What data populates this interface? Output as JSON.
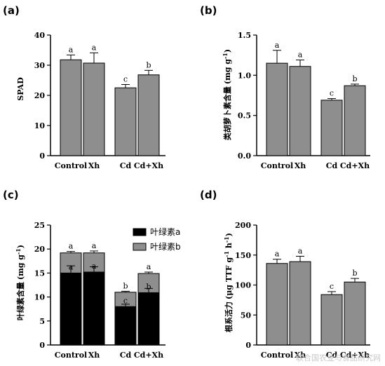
{
  "watermark": "联合国农业与食品研究网",
  "colors": {
    "bar": "#8e8e8e",
    "chl_a": "#000000",
    "chl_b": "#8e8e8e",
    "axis": "#000000"
  },
  "chart_data": [
    {
      "panel": "(a)",
      "type": "bar",
      "categories": [
        "Control",
        "Xh",
        "Cd",
        "Cd+Xh"
      ],
      "values": [
        31.8,
        30.7,
        22.5,
        26.8
      ],
      "errors": [
        1.6,
        3.4,
        1.1,
        1.5
      ],
      "significance": [
        "a",
        "a",
        "c",
        "b"
      ],
      "xlabel": "",
      "ylabel": "SPAD",
      "ylim": [
        0,
        40
      ],
      "yticks": [
        "0",
        "10",
        "20",
        "30",
        "40"
      ]
    },
    {
      "panel": "(b)",
      "type": "bar",
      "categories": [
        "Control",
        "Xh",
        "Cd",
        "Cd+Xh"
      ],
      "values": [
        1.15,
        1.11,
        0.69,
        0.87
      ],
      "errors": [
        0.16,
        0.08,
        0.02,
        0.02
      ],
      "significance": [
        "a",
        "a",
        "c",
        "b"
      ],
      "xlabel": "",
      "ylabel_main": "类胡萝卜素含量",
      "ylabel_unit": "(mg g",
      "ylabel_sup": "-1",
      "ylabel_close": ")",
      "ylim": [
        0,
        1.5
      ],
      "yticks": [
        "0.0",
        "0.5",
        "1.0",
        "1.5"
      ]
    },
    {
      "panel": "(c)",
      "type": "stacked-bar",
      "categories": [
        "Control",
        "Xh",
        "Cd",
        "Cd+Xh"
      ],
      "series": [
        {
          "name": "叶绿素a",
          "values": [
            15.0,
            15.2,
            8.0,
            10.9
          ],
          "errors": [
            1.5,
            1.1,
            0.5,
            0.9
          ],
          "significance": [
            "a",
            "a",
            "c",
            "b"
          ]
        },
        {
          "name": "叶绿素b",
          "values": [
            4.2,
            4.0,
            3.0,
            4.0
          ],
          "errors": [
            0.3,
            0.4,
            0.2,
            0.3
          ],
          "significance": [
            "a",
            "a",
            "b",
            "a"
          ]
        }
      ],
      "xlabel": "",
      "ylabel_main": "叶绿素含量",
      "ylabel_unit": "(mg g",
      "ylabel_sup": "-1",
      "ylabel_close": ")",
      "ylim": [
        0,
        25
      ],
      "yticks": [
        "0",
        "5",
        "10",
        "15",
        "20",
        "25"
      ],
      "legend": "top-right"
    },
    {
      "panel": "(d)",
      "type": "bar",
      "categories": [
        "Control",
        "Xh",
        "Cd",
        "Cd+Xh"
      ],
      "values": [
        136,
        139,
        84,
        105
      ],
      "errors": [
        7,
        9,
        5,
        6
      ],
      "significance": [
        "a",
        "a",
        "c",
        "b"
      ],
      "xlabel": "",
      "ylabel_main": "根系活力",
      "ylabel_unit": "(μg TTF g",
      "ylabel_sup": "-1",
      "ylabel_mid": " h",
      "ylabel_sup2": "-1",
      "ylabel_close": ")",
      "ylim": [
        0,
        200
      ],
      "yticks": [
        "0",
        "50",
        "100",
        "150",
        "200"
      ]
    }
  ]
}
